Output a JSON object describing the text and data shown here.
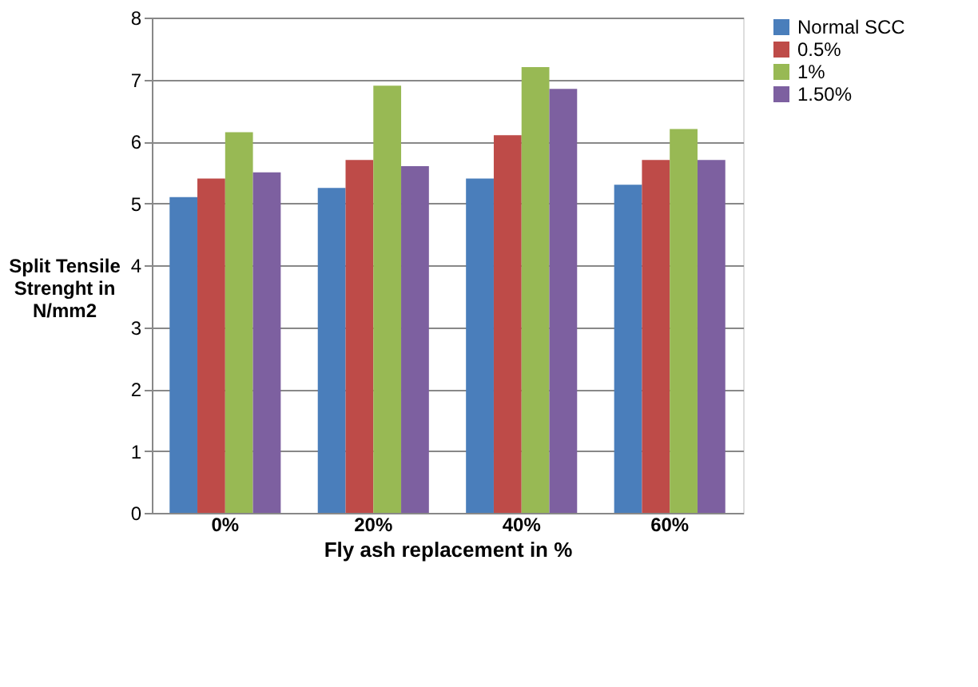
{
  "chart_data": {
    "type": "bar",
    "xlabel": "Fly ash replacement in %",
    "ylabel": "Split Tensile Strenght in N/mm2",
    "categories": [
      "0%",
      "20%",
      "40%",
      "60%"
    ],
    "series": [
      {
        "name": "Normal SCC",
        "color": "#4a7ebb",
        "values": [
          5.1,
          5.25,
          5.4,
          5.3
        ]
      },
      {
        "name": "0.5%",
        "color": "#be4b48",
        "values": [
          5.4,
          5.7,
          6.1,
          5.7
        ]
      },
      {
        "name": "1%",
        "color": "#98b954",
        "values": [
          6.15,
          6.9,
          7.2,
          6.2
        ]
      },
      {
        "name": "1.50%",
        "color": "#7d60a0",
        "values": [
          5.5,
          5.6,
          6.85,
          5.7
        ]
      }
    ],
    "ylim": [
      0,
      8
    ],
    "yticks": [
      0,
      1,
      2,
      3,
      4,
      5,
      6,
      7,
      8
    ],
    "grid": "y",
    "legend": "right"
  }
}
